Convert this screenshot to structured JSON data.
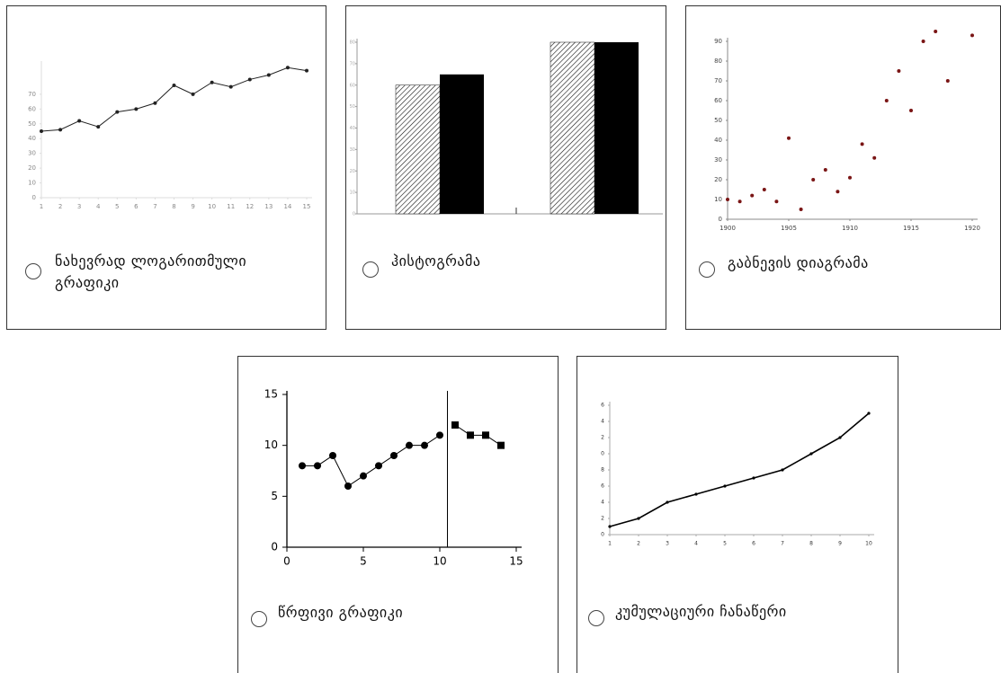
{
  "options": [
    {
      "label": "ნახევრად ლოგარითმული გრაფიკი",
      "chart": {
        "type": "line",
        "xlim": [
          1,
          15
        ],
        "ylim": [
          0,
          90
        ],
        "xticks": [
          1,
          2,
          3,
          4,
          5,
          6,
          7,
          8,
          9,
          10,
          11,
          12,
          13,
          14,
          15
        ],
        "yticks": [
          0,
          10,
          20,
          30,
          40,
          50,
          60,
          70
        ],
        "series": [
          {
            "color": "#222222",
            "marker": "circle",
            "x": [
              1,
              2,
              3,
              4,
              5,
              6,
              7,
              8,
              9,
              10,
              11,
              12,
              13,
              14,
              15
            ],
            "values": [
              45,
              46,
              52,
              48,
              58,
              60,
              64,
              76,
              70,
              78,
              75,
              80,
              83,
              88,
              86
            ]
          }
        ]
      }
    },
    {
      "label": "ჰისტოგრამა",
      "chart": {
        "type": "bar",
        "ylim": [
          0,
          80
        ],
        "yticks": [
          0,
          10,
          20,
          30,
          40,
          50,
          60,
          70,
          80
        ],
        "categories": [
          null,
          null
        ],
        "series": [
          {
            "color": "#111111",
            "hatched": true,
            "values": [
              60,
              80
            ]
          },
          {
            "color": "#000000",
            "hatched": false,
            "values": [
              65,
              80
            ]
          }
        ]
      }
    },
    {
      "label": "გაბნევის დიაგრამა",
      "chart": {
        "type": "scatter",
        "xlim": [
          1900,
          1920
        ],
        "ylim": [
          0,
          90
        ],
        "color": "#7a1515",
        "xticks": [
          1900,
          1905,
          1910,
          1915,
          1920
        ],
        "yticks": [
          0,
          10,
          20,
          30,
          40,
          50,
          60,
          70,
          80,
          90
        ],
        "x": [
          1900,
          1901,
          1902,
          1903,
          1904,
          1905,
          1906,
          1907,
          1908,
          1909,
          1910,
          1911,
          1912,
          1913,
          1914,
          1915,
          1916,
          1917,
          1918,
          1920
        ],
        "values": [
          10,
          9,
          12,
          15,
          9,
          41,
          5,
          20,
          25,
          14,
          21,
          38,
          31,
          60,
          75,
          55,
          90,
          95,
          70,
          93
        ]
      }
    },
    {
      "label": "წრფივი გრაფიკი",
      "chart": {
        "type": "line",
        "xlim": [
          0,
          15
        ],
        "ylim": [
          0,
          15
        ],
        "xticks": [
          0,
          5,
          10,
          15
        ],
        "yticks": [
          0,
          5,
          10,
          15
        ],
        "divider_x": 10.5,
        "series": [
          {
            "color": "#000000",
            "marker": "circle",
            "x": [
              1,
              2,
              3,
              4,
              5,
              6,
              7,
              8,
              9,
              10
            ],
            "values": [
              8,
              8,
              9,
              6,
              7,
              8,
              9,
              10,
              10,
              11
            ]
          },
          {
            "color": "#000000",
            "marker": "square",
            "x": [
              11,
              12,
              13,
              14
            ],
            "values": [
              12,
              11,
              11,
              10
            ]
          }
        ]
      }
    },
    {
      "label": "კუმულაციური ჩანაწერი",
      "chart": {
        "type": "line",
        "xlim": [
          1,
          10
        ],
        "ylim": [
          0,
          16
        ],
        "xticks": [
          1,
          2,
          3,
          4,
          5,
          6,
          7,
          8,
          9,
          10
        ],
        "yticks": [
          0,
          2,
          4,
          6,
          8,
          {
            "value": 10,
            "label": "0"
          },
          {
            "value": 12,
            "label": "2"
          },
          {
            "value": 14,
            "label": "4"
          },
          {
            "value": 16,
            "label": "6"
          }
        ],
        "series": [
          {
            "color": "#000000",
            "marker": "circle",
            "x": [
              1,
              2,
              3,
              4,
              5,
              6,
              7,
              8,
              9,
              10
            ],
            "values": [
              1,
              2,
              4,
              5,
              6,
              7,
              8,
              10,
              12,
              15
            ]
          }
        ]
      }
    }
  ]
}
